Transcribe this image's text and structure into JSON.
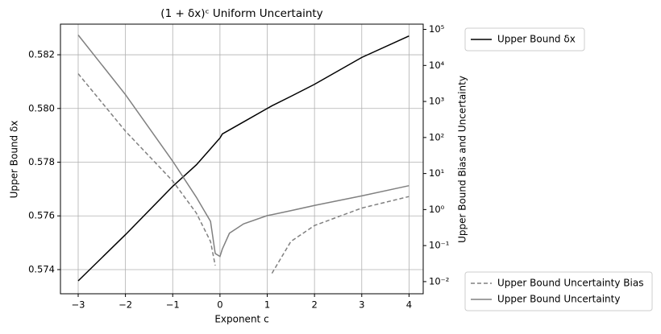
{
  "chart_data": {
    "type": "line",
    "title": "(1 + δx)ᶜ Uniform Uncertainty",
    "x_label": "Exponent c",
    "y_label": "Upper Bound δx",
    "y2_label": "Upper Bound Bias and Uncertainty",
    "x": [
      -3,
      -2,
      -1,
      -0.5,
      -0.2,
      -0.1,
      0,
      0.05,
      0.2,
      0.5,
      1,
      1.1,
      1.5,
      2,
      3,
      4
    ],
    "series": [
      {
        "name": "Upper Bound δx",
        "color": "#000000",
        "style": "solid",
        "values": [
          0.57358,
          0.5753,
          0.5771,
          0.5779,
          0.5785,
          0.5787,
          0.5789,
          0.57905,
          0.5792,
          0.5795,
          0.58,
          0.5801,
          0.58045,
          0.5809,
          0.5819,
          0.5827
        ]
      },
      {
        "name": "Upper Bound Uncertainty Bias",
        "color": "#808080",
        "style": "dashed",
        "axis": "y2",
        "values": [
          5900,
          150,
          6.2,
          0.8,
          0.13,
          0.028,
          null,
          null,
          null,
          null,
          null,
          0.017,
          0.13,
          0.36,
          1.1,
          2.3
        ]
      },
      {
        "name": "Upper Bound Uncertainty",
        "color": "#808080",
        "style": "solid",
        "axis": "y2",
        "values": [
          70000,
          1550,
          22,
          2.2,
          0.47,
          0.06,
          0.05,
          0.08,
          0.22,
          0.4,
          0.68,
          0.72,
          0.93,
          1.3,
          2.4,
          4.6
        ]
      }
    ],
    "xlim": [
      -3.375,
      4.3
    ],
    "xticks": [
      {
        "value": -3,
        "label": "−3"
      },
      {
        "value": -2,
        "label": "−2"
      },
      {
        "value": -1,
        "label": "−1"
      },
      0,
      1,
      2,
      3,
      4
    ],
    "ylim": [
      0.5731,
      0.58314
    ],
    "yticks": [
      0.574,
      0.576,
      0.578,
      {
        "value": 0.58,
        "label": "0.580"
      },
      0.582
    ],
    "y2lim": [
      0.0046,
      140000
    ],
    "y2scale": "log",
    "y2ticks": [
      {
        "value": 0.01,
        "label": "10⁻²"
      },
      {
        "value": 0.1,
        "label": "10⁻¹"
      },
      {
        "value": 1,
        "label": "10⁰"
      },
      {
        "value": 10,
        "label": "10¹"
      },
      {
        "value": 100,
        "label": "10²"
      },
      {
        "value": 1000,
        "label": "10³"
      },
      {
        "value": 10000,
        "label": "10⁴"
      },
      {
        "value": 100000,
        "label": "10⁵"
      }
    ],
    "grid": true
  }
}
